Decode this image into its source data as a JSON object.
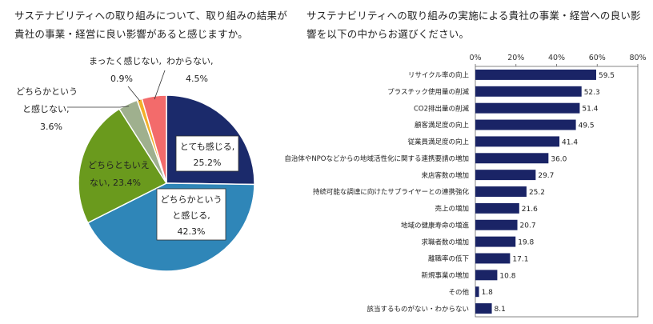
{
  "chart_data": [
    {
      "type": "pie",
      "title": "サステナビリティへの取り組みについて、取り組みの結果が貴社の事業・経営に良い影響があると感じますか。",
      "slices": [
        {
          "label": "とても感じる,",
          "value": 25.2,
          "value_text": "25.2%",
          "color": "#1b2a6b"
        },
        {
          "label": "どちらかという と感じる,",
          "value": 42.3,
          "value_text": "42.3%",
          "color": "#2f86b8"
        },
        {
          "label": "どちらともいえ ない,",
          "value": 23.4,
          "value_text": "23.4%",
          "color": "#6a9a1d"
        },
        {
          "label": "どちらかという と感じない,",
          "value": 3.6,
          "value_text": "3.6%",
          "color": "#9fb08e"
        },
        {
          "label": "まったく感じない,",
          "value": 0.9,
          "value_text": "0.9%",
          "color": "#f2b02a"
        },
        {
          "label": "わからない,",
          "value": 4.5,
          "value_text": "4.5%",
          "color": "#f36b6b"
        }
      ]
    },
    {
      "type": "bar",
      "orientation": "horizontal",
      "title": "サステナビリティへの取り組みの実施による貴社の事業・経営への良い影響を以下の中からお選びください。",
      "xlim": [
        0,
        80
      ],
      "ticks": [
        "0%",
        "20%",
        "40%",
        "60%",
        "80%"
      ],
      "tick_values": [
        0,
        20,
        40,
        60,
        80
      ],
      "bar_color": "#1a2466",
      "categories": [
        "リサイクル率の向上",
        "プラスチック使用量の削減",
        "CO2排出量の削減",
        "顧客満足度の向上",
        "従業員満足度の向上",
        "自治体やNPOなどからの地域活性化に関する連携要請の増加",
        "来店客数の増加",
        "持続可能な調達に向けたサプライヤーとの連携強化",
        "売上の増加",
        "地域の健康寿命の増進",
        "求職者数の増加",
        "離職率の低下",
        "新規事業の増加",
        "その他",
        "該当するものがない・わからない"
      ],
      "values": [
        59.5,
        52.3,
        51.4,
        49.5,
        41.4,
        36.0,
        29.7,
        25.2,
        21.6,
        20.7,
        19.8,
        17.1,
        10.8,
        1.8,
        8.1
      ],
      "value_labels": [
        "59.5",
        "52.3",
        "51.4",
        "49.5",
        "41.4",
        "36.0",
        "29.7",
        "25.2",
        "21.6",
        "20.7",
        "19.8",
        "17.1",
        "10.8",
        "1.8",
        "8.1"
      ]
    }
  ]
}
